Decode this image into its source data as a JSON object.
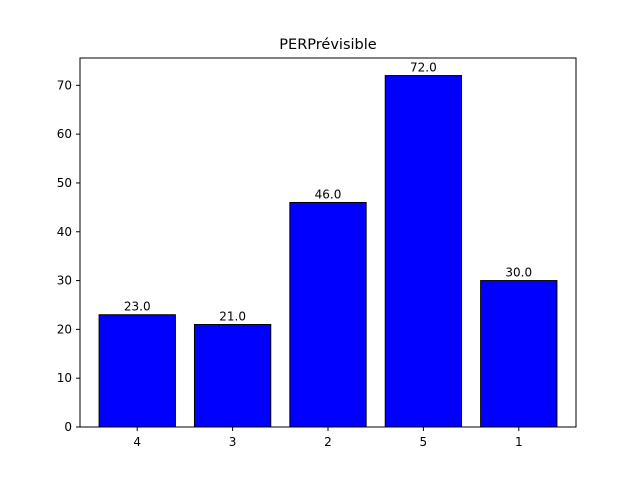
{
  "chart_data": {
    "type": "bar",
    "title": "PERPrévisible",
    "xlabel": "",
    "ylabel": "",
    "categories": [
      "4",
      "3",
      "2",
      "5",
      "1"
    ],
    "values": [
      23,
      21,
      46,
      72,
      30
    ],
    "data_labels": [
      "23.0",
      "21.0",
      "46.0",
      "72.0",
      "30.0"
    ],
    "ylim": [
      0,
      75.6
    ],
    "yticks": [
      0,
      10,
      20,
      30,
      40,
      50,
      60,
      70
    ],
    "ytick_labels": [
      "0",
      "10",
      "20",
      "30",
      "40",
      "50",
      "60",
      "70"
    ],
    "grid": false,
    "legend": "none",
    "colors": {
      "bar_fill": "#0000ff",
      "bar_edge": "#000000",
      "axes": "#000000",
      "background": "#ffffff"
    }
  }
}
